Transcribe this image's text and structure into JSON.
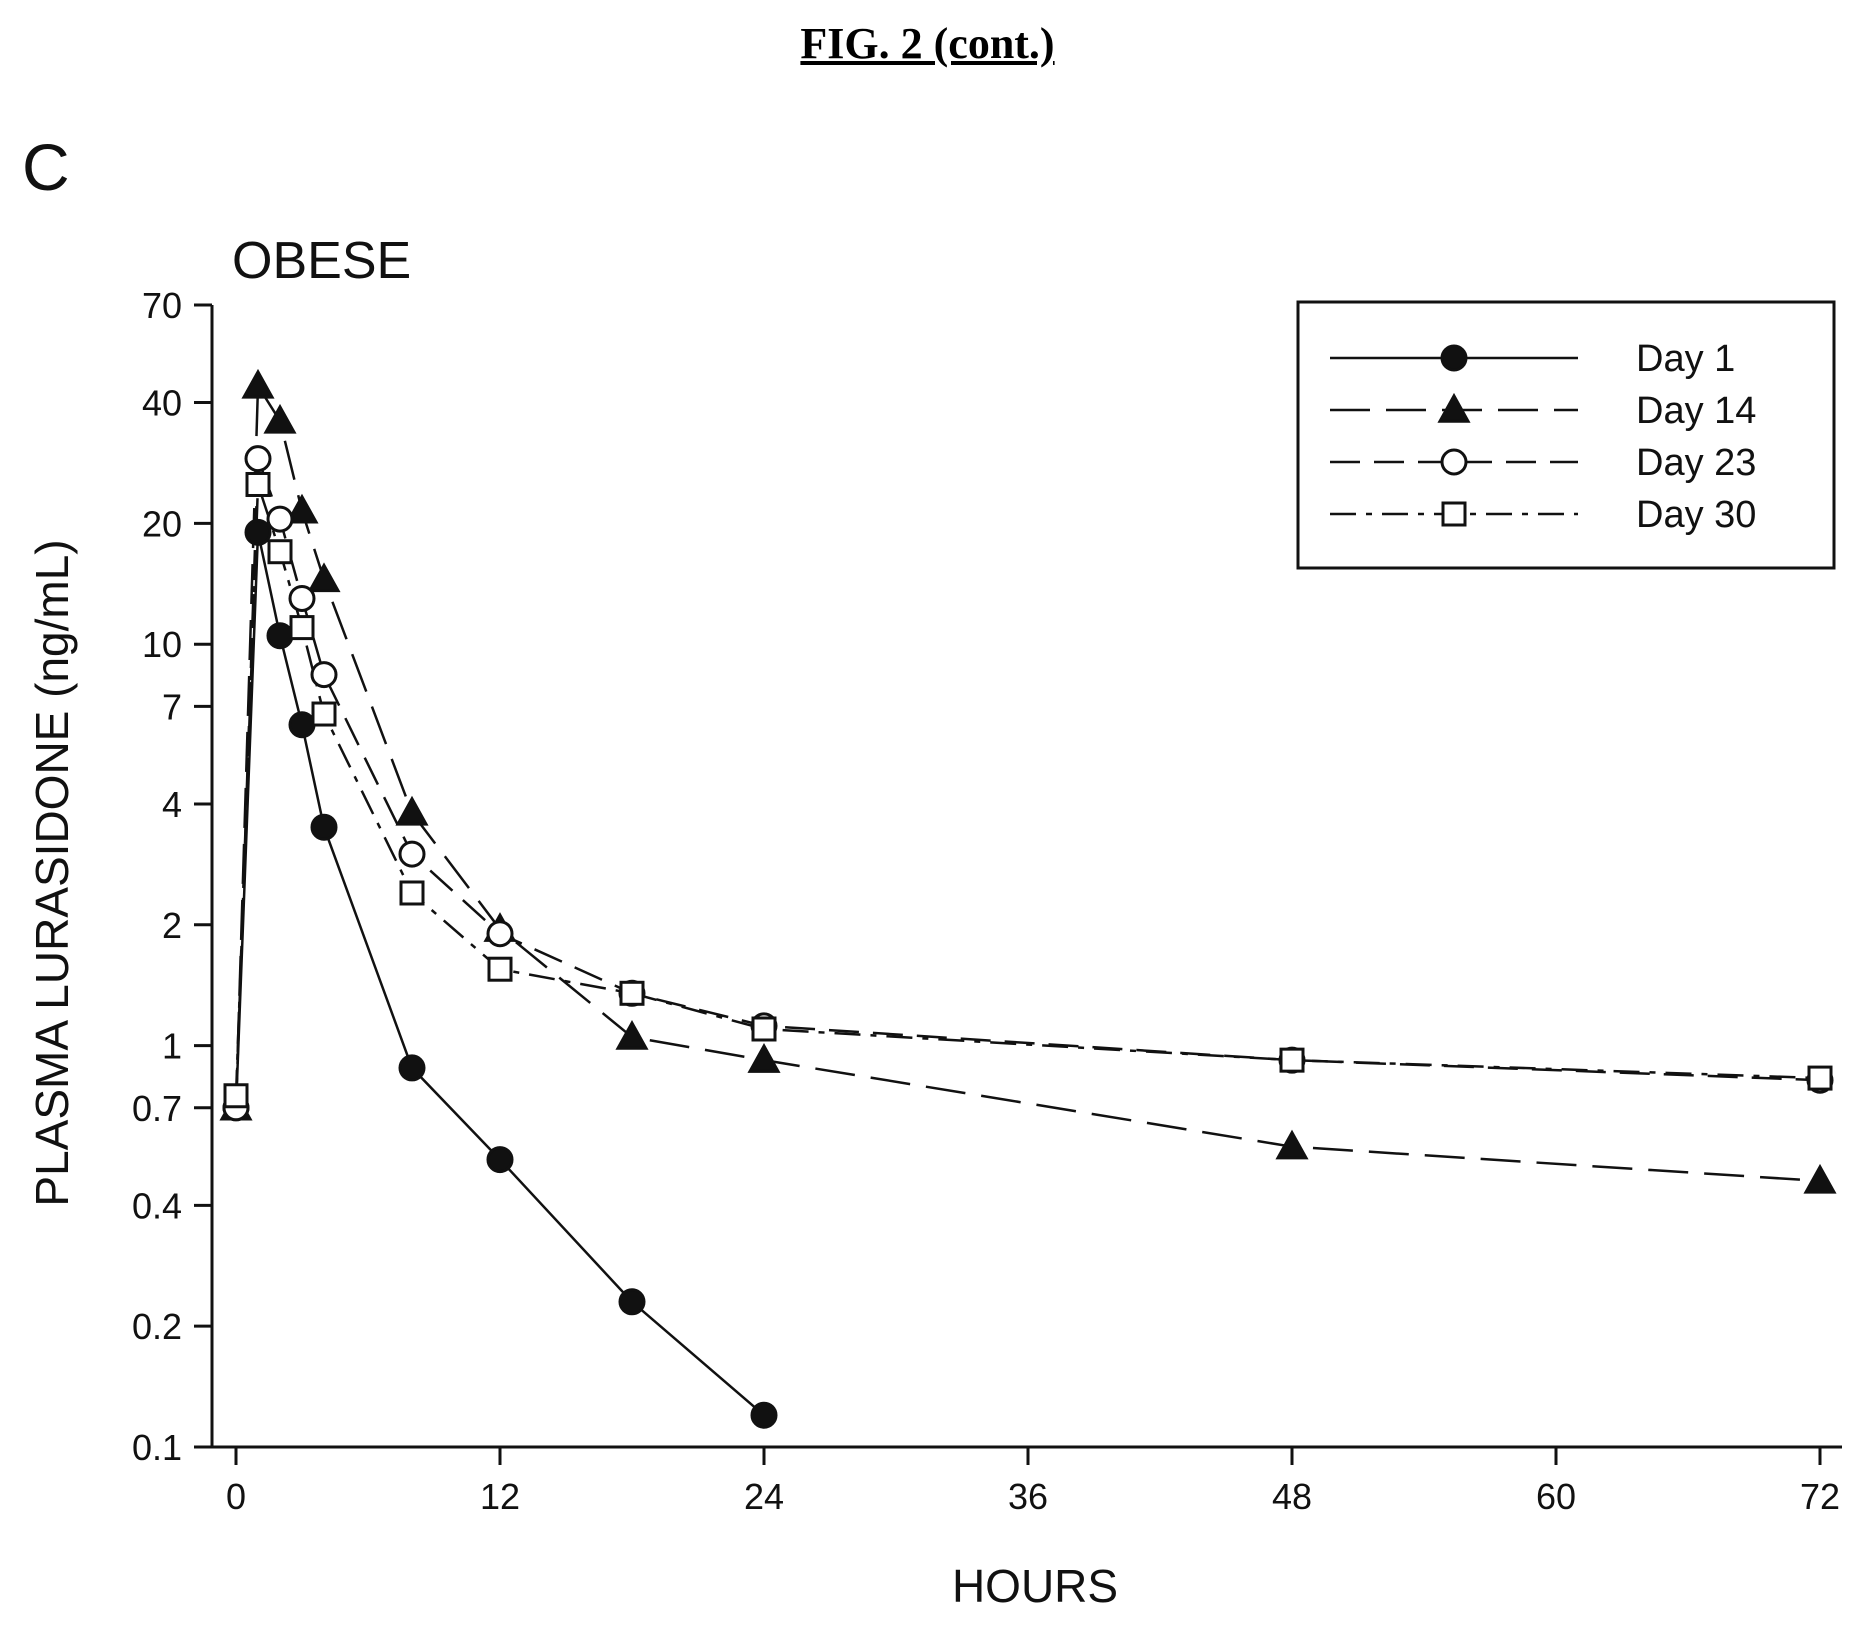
{
  "figure": {
    "title": "FIG. 2 (cont.)"
  },
  "colors": {
    "ink": "#111111",
    "frame": "#222222"
  },
  "chart_data": {
    "type": "line",
    "panel_label": "C",
    "subtitle": "OBESE",
    "xlabel": "HOURS",
    "ylabel": "PLASMA LURASIDONE (ng/mL)",
    "xlim": [
      -1,
      72.5
    ],
    "ylim": [
      0.1,
      70
    ],
    "yscale": "log",
    "xticks": [
      0,
      12,
      24,
      36,
      48,
      60,
      72
    ],
    "yticks": [
      0.1,
      0.2,
      0.4,
      0.7,
      1,
      2,
      4,
      7,
      10,
      20,
      40,
      70
    ],
    "legend_position": "top-right",
    "grid": false,
    "series": [
      {
        "name": "Day 1",
        "marker": "filled-circle",
        "line": "solid",
        "x": [
          0,
          1,
          2,
          3,
          4,
          8,
          12,
          18,
          24
        ],
        "y": [
          0.7,
          19,
          10.5,
          6.3,
          3.5,
          0.88,
          0.52,
          0.23,
          0.12
        ]
      },
      {
        "name": "Day 14",
        "marker": "filled-triangle",
        "line": "long-dash",
        "x": [
          0,
          1,
          2,
          3,
          4,
          8,
          12,
          18,
          24,
          48,
          72
        ],
        "y": [
          0.7,
          44,
          36,
          21.5,
          14.5,
          3.8,
          1.95,
          1.05,
          0.92,
          0.56,
          0.46
        ]
      },
      {
        "name": "Day 23",
        "marker": "open-circle",
        "line": "dash",
        "x": [
          0,
          1,
          2,
          3,
          4,
          8,
          12,
          18,
          24,
          48,
          72
        ],
        "y": [
          0.7,
          29,
          20.5,
          13,
          8.4,
          3,
          1.9,
          1.35,
          1.12,
          0.92,
          0.82
        ]
      },
      {
        "name": "Day 30",
        "marker": "open-square",
        "line": "dash-dot",
        "x": [
          0,
          1,
          2,
          3,
          4,
          8,
          12,
          18,
          24,
          48,
          72
        ],
        "y": [
          0.75,
          25,
          17,
          11,
          6.7,
          2.4,
          1.55,
          1.35,
          1.1,
          0.92,
          0.83
        ]
      }
    ]
  }
}
